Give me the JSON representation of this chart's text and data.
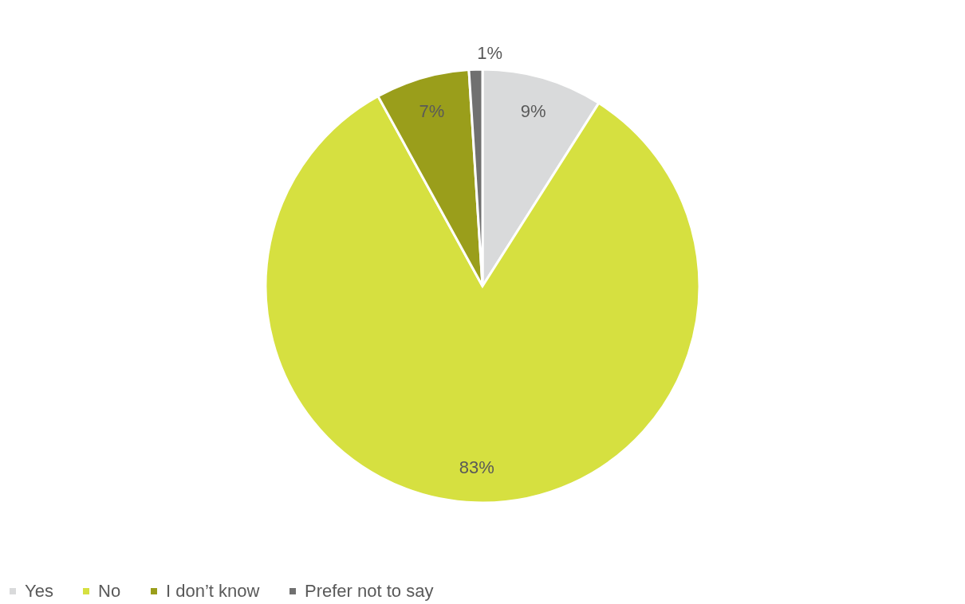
{
  "chart_data": {
    "type": "pie",
    "categories": [
      "Yes",
      "No",
      "I don’t know",
      "Prefer not to say"
    ],
    "values": [
      9,
      83,
      7,
      1
    ],
    "colors": [
      "#d9dadb",
      "#d6e040",
      "#9a9e1b",
      "#707070"
    ],
    "data_labels": true,
    "value_labels": [
      "9%",
      "83%",
      "7%",
      "1%"
    ],
    "legend": "bottom"
  }
}
